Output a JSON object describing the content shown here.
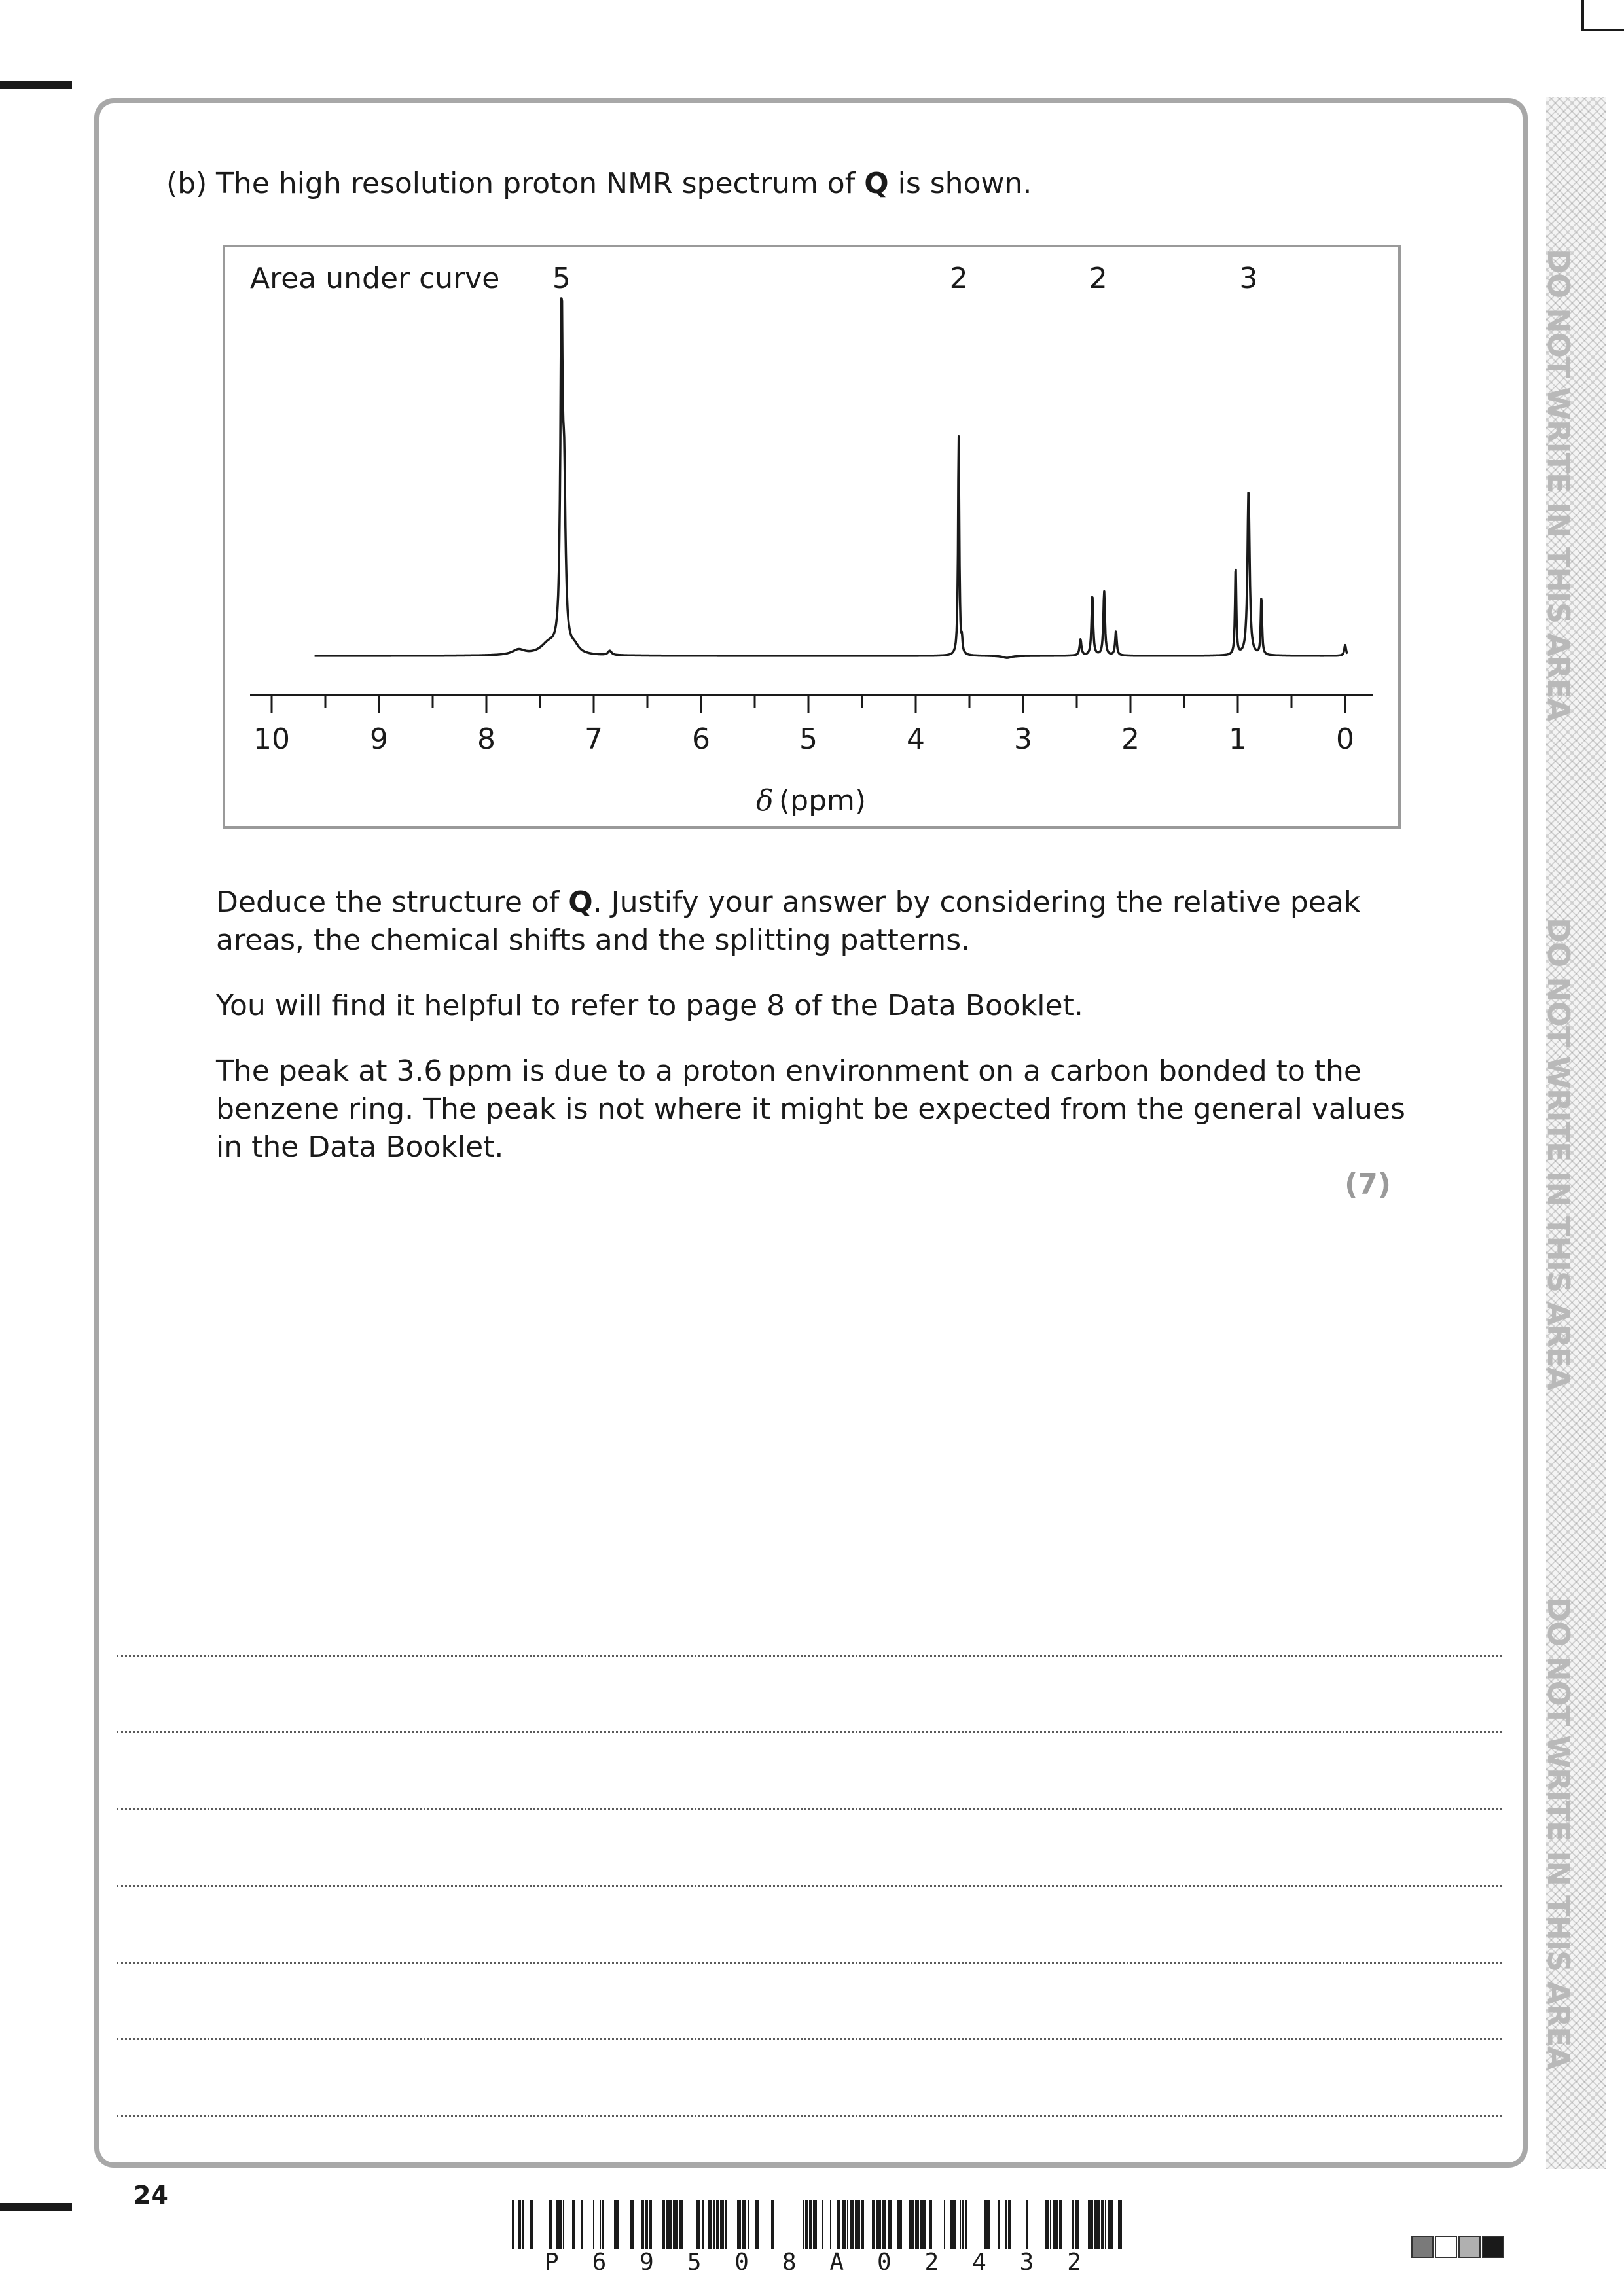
{
  "question": {
    "part_label": "(b)",
    "intro_before": "The high resolution proton NMR spectrum of ",
    "intro_bold": "Q",
    "intro_after": " is shown.",
    "para1_before": "Deduce the structure of ",
    "para1_bold": "Q",
    "para1_line1_after": ". Justify your answer by considering the relative peak",
    "para1_line2": "areas, the chemical shifts and the splitting patterns.",
    "para2": "You will find it helpful to refer to page 8 of the Data Booklet.",
    "para3_line1": "The peak at 3.6 ppm is due to a proton environment on a carbon bonded to the",
    "para3_line2": "benzene ring. The peak is not where it might be expected from the general values",
    "para3_line3": "in the Data Booklet.",
    "marks": "(7)"
  },
  "chart_data": {
    "type": "line",
    "area_label": "Area under curve",
    "xlabel_symbol": "δ",
    "xlabel_unit": "(ppm)",
    "xlim": [
      10,
      0
    ],
    "x_reversed": true,
    "x_ticks": [
      "10",
      "9",
      "8",
      "7",
      "6",
      "5",
      "4",
      "3",
      "2",
      "1",
      "0"
    ],
    "peak_areas": [
      {
        "shift": 7.3,
        "area": "5"
      },
      {
        "shift": 3.6,
        "area": "2"
      },
      {
        "shift": 2.3,
        "area": "2"
      },
      {
        "shift": 0.9,
        "area": "3"
      }
    ],
    "peaks": [
      {
        "shift": 7.3,
        "height": 1.0,
        "multiplicity": "singlet"
      },
      {
        "shift": 3.6,
        "height": 0.62,
        "multiplicity": "singlet"
      },
      {
        "shift": 2.3,
        "height": 0.18,
        "multiplicity": "multiplet"
      },
      {
        "shift": 0.9,
        "height": 0.47,
        "multiplicity": "triplet"
      },
      {
        "shift": 0.0,
        "height": 0.03,
        "multiplicity": "singlet"
      }
    ]
  },
  "answer_lines": 7,
  "side_warning": "DO NOT WRITE IN THIS AREA",
  "footer": {
    "page_number": "24",
    "barcode_text": [
      "P",
      "6",
      "9",
      "5",
      "0",
      "8",
      "A",
      "0",
      "2",
      "4",
      "3",
      "2"
    ],
    "square_colors": [
      "#7a7a7a",
      "#ffffff",
      "#b0b0b0",
      "#1a1a1a"
    ]
  }
}
